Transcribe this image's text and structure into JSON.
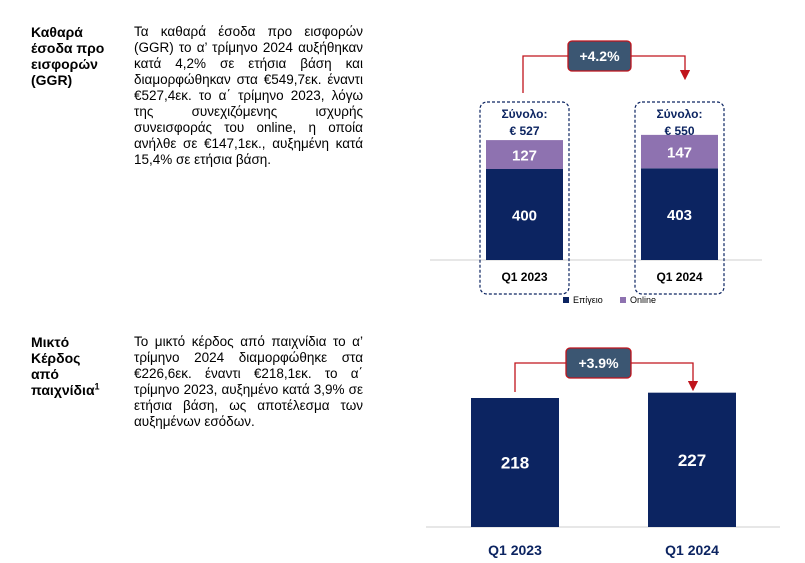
{
  "section1": {
    "heading": "Καθαρά έσοδα προ εισφορών (GGR)",
    "text": "Τα καθαρά έσοδα προ εισφορών (GGR) το α’ τρίμηνο 2024 αυξήθηκαν κατά 4,2% σε ετήσια βάση και διαμορφώθηκαν στα €549,7εκ. έναντι €527,4εκ. το α΄ τρίμηνο 2023, λόγω της συνεχιζόμενης ισχυρής συνεισφοράς του online, η οποία ανήλθε σε €147,1εκ., αυξημένη κατά 15,4% σε ετήσια βάση."
  },
  "section2": {
    "heading": "Μικτό Κέρδος από παιχνίδια",
    "heading_sup": "1",
    "text": "Το μικτό κέρδος από παιχνίδια το α’ τρίμηνο 2024 διαμορφώθηκε στα €226,6εκ. έναντι €218,1εκ. το α΄ τρίμηνο 2023, αυξημένο κατά 3,9% σε ετήσια βάση, ως αποτέλεσμα των αυξημένων εσόδων."
  },
  "colors": {
    "navy": "#0c2461",
    "purple": "#8e72b0",
    "arrow": "#c0141c",
    "badge": "#3b5672"
  },
  "chart_data": [
    {
      "type": "bar",
      "stacked": true,
      "categories": [
        "Q1 2023",
        "Q1 2024"
      ],
      "series": [
        {
          "name": "Επίγειο",
          "values": [
            400,
            403
          ],
          "color": "#0c2461"
        },
        {
          "name": "Online",
          "values": [
            127,
            147
          ],
          "color": "#8e72b0"
        }
      ],
      "totals_prefix": "Σύνολο:",
      "totals": [
        "€ 527",
        "€ 550"
      ],
      "change_label": "+4.2%",
      "legend": "bottom"
    },
    {
      "type": "bar",
      "categories": [
        "Q1 2023",
        "Q1 2024"
      ],
      "values": [
        218,
        227
      ],
      "color": "#0c2461",
      "change_label": "+3.9%"
    }
  ]
}
